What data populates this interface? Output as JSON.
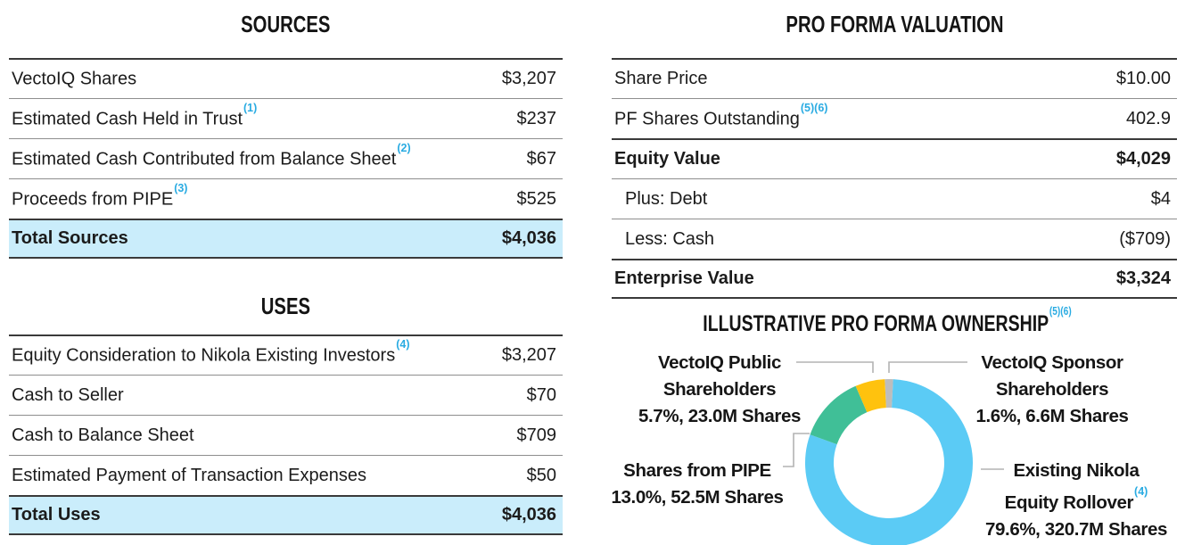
{
  "colors": {
    "footnote_blue": "#29ABE2",
    "highlight_row_blue": "#CAEDFB"
  },
  "sources_table": {
    "title": "SOURCES",
    "rows": [
      {
        "label": "VectoIQ Shares",
        "sup": "",
        "value": "$3,207"
      },
      {
        "label": "Estimated Cash Held in Trust",
        "sup": "(1)",
        "value": "$237"
      },
      {
        "label": "Estimated Cash Contributed from Balance Sheet",
        "sup": "(2)",
        "value": "$67"
      },
      {
        "label": "Proceeds from PIPE",
        "sup": "(3)",
        "value": "$525"
      },
      {
        "label": "Total Sources",
        "sup": "",
        "value": "$4,036"
      }
    ]
  },
  "uses_table": {
    "title": "USES",
    "rows": [
      {
        "label": "Equity Consideration to Nikola Existing Investors",
        "sup": "(4)",
        "value": "$3,207"
      },
      {
        "label": "Cash to Seller",
        "sup": "",
        "value": "$70"
      },
      {
        "label": "Cash to Balance Sheet",
        "sup": "",
        "value": "$709"
      },
      {
        "label": "Estimated Payment of Transaction Expenses",
        "sup": "",
        "value": "$50"
      },
      {
        "label": "Total Uses",
        "sup": "",
        "value": "$4,036"
      }
    ]
  },
  "valuation_table": {
    "title": "PRO FORMA VALUATION",
    "rows": [
      {
        "label": "Share Price",
        "sup": "",
        "value": "$10.00"
      },
      {
        "label": "PF Shares Outstanding",
        "sup": "(5)(6)",
        "value": "402.9"
      },
      {
        "label": "Equity Value",
        "sup": "",
        "value": "$4,029"
      },
      {
        "label": "Plus: Debt",
        "sup": "",
        "value": "$4"
      },
      {
        "label": "Less: Cash",
        "sup": "",
        "value": "($709)"
      },
      {
        "label": "Enterprise Value",
        "sup": "",
        "value": "$3,324"
      }
    ]
  },
  "chart_data": {
    "type": "pie",
    "subtype": "donut",
    "title": "ILLUSTRATIVE PRO FORMA OWNERSHIP",
    "title_sup": "(5)(6)",
    "start_offset_deg": -2.9,
    "segments": [
      {
        "name": "VectoIQ Sponsor Shareholders",
        "pct": 1.6,
        "shares_m": 6.6,
        "color": "#BDBDBD"
      },
      {
        "name": "Existing Nikola Equity Rollover",
        "pct": 79.6,
        "shares_m": 320.7,
        "color": "#5BCBF5"
      },
      {
        "name": "Shares from PIPE",
        "pct": 13.0,
        "shares_m": 52.5,
        "color": "#40BF97"
      },
      {
        "name": "VectoIQ Public Shareholders",
        "pct": 5.7,
        "shares_m": 23.0,
        "color": "#FFC20E"
      }
    ],
    "labels": {
      "public": {
        "line1": "VectoIQ Public",
        "line2": "Shareholders",
        "line3": "5.7%, 23.0M Shares"
      },
      "sponsor": {
        "line1": "VectoIQ Sponsor",
        "line2": "Shareholders",
        "line3": "1.6%, 6.6M Shares"
      },
      "pipe": {
        "line1": "Shares from PIPE",
        "line2": "13.0%, 52.5M Shares"
      },
      "nikola": {
        "line1": "Existing Nikola",
        "line2": "Equity Rollover",
        "line2_sup": "(4)",
        "line3": "79.6%, 320.7M Shares"
      }
    }
  }
}
